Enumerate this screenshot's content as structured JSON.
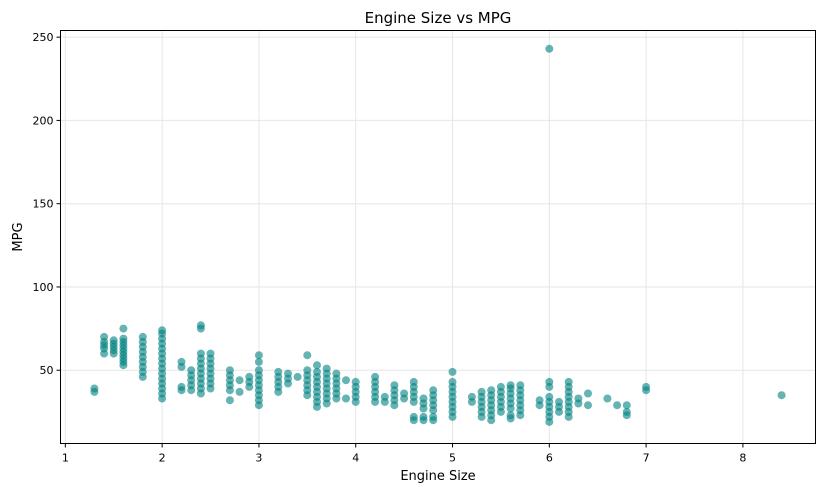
{
  "chart_data": {
    "type": "scatter",
    "title": "Engine Size vs MPG",
    "xlabel": "Engine Size",
    "ylabel": "MPG",
    "xlim": [
      0.95,
      8.75
    ],
    "ylim": [
      6,
      254
    ],
    "xticks": [
      1,
      2,
      3,
      4,
      5,
      6,
      7,
      8
    ],
    "yticks": [
      50,
      100,
      150,
      200,
      250
    ],
    "grid": true,
    "marker_color": "#008080",
    "marker_alpha": 0.6,
    "series": [
      {
        "points": [
          [
            1.3,
            37
          ],
          [
            1.3,
            39
          ],
          [
            1.4,
            60
          ],
          [
            1.4,
            63
          ],
          [
            1.4,
            65
          ],
          [
            1.4,
            67
          ],
          [
            1.4,
            70
          ],
          [
            1.5,
            60
          ],
          [
            1.5,
            62
          ],
          [
            1.5,
            64
          ],
          [
            1.5,
            66
          ],
          [
            1.5,
            68
          ],
          [
            1.6,
            53
          ],
          [
            1.6,
            55
          ],
          [
            1.6,
            57
          ],
          [
            1.6,
            59
          ],
          [
            1.6,
            61
          ],
          [
            1.6,
            63
          ],
          [
            1.6,
            65
          ],
          [
            1.6,
            67
          ],
          [
            1.6,
            69
          ],
          [
            1.6,
            75
          ],
          [
            1.8,
            46
          ],
          [
            1.8,
            49
          ],
          [
            1.8,
            52
          ],
          [
            1.8,
            55
          ],
          [
            1.8,
            58
          ],
          [
            1.8,
            61
          ],
          [
            1.8,
            64
          ],
          [
            1.8,
            67
          ],
          [
            1.8,
            70
          ],
          [
            2.0,
            33
          ],
          [
            2.0,
            36
          ],
          [
            2.0,
            39
          ],
          [
            2.0,
            42
          ],
          [
            2.0,
            45
          ],
          [
            2.0,
            48
          ],
          [
            2.0,
            51
          ],
          [
            2.0,
            54
          ],
          [
            2.0,
            57
          ],
          [
            2.0,
            60
          ],
          [
            2.0,
            63
          ],
          [
            2.0,
            66
          ],
          [
            2.0,
            69
          ],
          [
            2.0,
            72
          ],
          [
            2.0,
            74
          ],
          [
            2.2,
            38
          ],
          [
            2.2,
            40
          ],
          [
            2.2,
            52
          ],
          [
            2.2,
            55
          ],
          [
            2.3,
            38
          ],
          [
            2.3,
            41
          ],
          [
            2.3,
            44
          ],
          [
            2.3,
            47
          ],
          [
            2.3,
            50
          ],
          [
            2.4,
            36
          ],
          [
            2.4,
            39
          ],
          [
            2.4,
            42
          ],
          [
            2.4,
            45
          ],
          [
            2.4,
            48
          ],
          [
            2.4,
            51
          ],
          [
            2.4,
            54
          ],
          [
            2.4,
            57
          ],
          [
            2.4,
            60
          ],
          [
            2.4,
            75
          ],
          [
            2.4,
            77
          ],
          [
            2.5,
            39
          ],
          [
            2.5,
            42
          ],
          [
            2.5,
            45
          ],
          [
            2.5,
            48
          ],
          [
            2.5,
            51
          ],
          [
            2.5,
            54
          ],
          [
            2.5,
            57
          ],
          [
            2.5,
            60
          ],
          [
            2.7,
            32
          ],
          [
            2.7,
            38
          ],
          [
            2.7,
            41
          ],
          [
            2.7,
            44
          ],
          [
            2.7,
            47
          ],
          [
            2.7,
            50
          ],
          [
            2.8,
            37
          ],
          [
            2.8,
            44
          ],
          [
            2.9,
            40
          ],
          [
            2.9,
            43
          ],
          [
            2.9,
            46
          ],
          [
            3.0,
            29
          ],
          [
            3.0,
            32
          ],
          [
            3.0,
            35
          ],
          [
            3.0,
            38
          ],
          [
            3.0,
            41
          ],
          [
            3.0,
            44
          ],
          [
            3.0,
            47
          ],
          [
            3.0,
            50
          ],
          [
            3.0,
            55
          ],
          [
            3.0,
            59
          ],
          [
            3.2,
            37
          ],
          [
            3.2,
            40
          ],
          [
            3.2,
            43
          ],
          [
            3.2,
            46
          ],
          [
            3.2,
            49
          ],
          [
            3.3,
            42
          ],
          [
            3.3,
            45
          ],
          [
            3.3,
            48
          ],
          [
            3.4,
            46
          ],
          [
            3.5,
            35
          ],
          [
            3.5,
            38
          ],
          [
            3.5,
            41
          ],
          [
            3.5,
            44
          ],
          [
            3.5,
            47
          ],
          [
            3.5,
            50
          ],
          [
            3.5,
            59
          ],
          [
            3.6,
            28
          ],
          [
            3.6,
            31
          ],
          [
            3.6,
            34
          ],
          [
            3.6,
            37
          ],
          [
            3.6,
            40
          ],
          [
            3.6,
            43
          ],
          [
            3.6,
            46
          ],
          [
            3.6,
            49
          ],
          [
            3.6,
            53
          ],
          [
            3.7,
            30
          ],
          [
            3.7,
            33
          ],
          [
            3.7,
            36
          ],
          [
            3.7,
            39
          ],
          [
            3.7,
            42
          ],
          [
            3.7,
            45
          ],
          [
            3.7,
            48
          ],
          [
            3.7,
            51
          ],
          [
            3.8,
            33
          ],
          [
            3.8,
            36
          ],
          [
            3.8,
            39
          ],
          [
            3.8,
            42
          ],
          [
            3.8,
            45
          ],
          [
            3.8,
            48
          ],
          [
            3.9,
            33
          ],
          [
            3.9,
            44
          ],
          [
            4.0,
            31
          ],
          [
            4.0,
            34
          ],
          [
            4.0,
            37
          ],
          [
            4.0,
            40
          ],
          [
            4.0,
            43
          ],
          [
            4.2,
            31
          ],
          [
            4.2,
            34
          ],
          [
            4.2,
            37
          ],
          [
            4.2,
            40
          ],
          [
            4.2,
            43
          ],
          [
            4.2,
            46
          ],
          [
            4.3,
            31
          ],
          [
            4.3,
            34
          ],
          [
            4.4,
            29
          ],
          [
            4.4,
            32
          ],
          [
            4.4,
            35
          ],
          [
            4.4,
            38
          ],
          [
            4.4,
            41
          ],
          [
            4.5,
            33
          ],
          [
            4.5,
            36
          ],
          [
            4.6,
            20
          ],
          [
            4.6,
            22
          ],
          [
            4.6,
            31
          ],
          [
            4.6,
            34
          ],
          [
            4.6,
            37
          ],
          [
            4.6,
            40
          ],
          [
            4.6,
            43
          ],
          [
            4.7,
            20
          ],
          [
            4.7,
            22
          ],
          [
            4.7,
            27
          ],
          [
            4.7,
            30
          ],
          [
            4.7,
            33
          ],
          [
            4.8,
            20
          ],
          [
            4.8,
            22
          ],
          [
            4.8,
            26
          ],
          [
            4.8,
            29
          ],
          [
            4.8,
            32
          ],
          [
            4.8,
            35
          ],
          [
            4.8,
            38
          ],
          [
            5.0,
            22
          ],
          [
            5.0,
            25
          ],
          [
            5.0,
            28
          ],
          [
            5.0,
            31
          ],
          [
            5.0,
            34
          ],
          [
            5.0,
            37
          ],
          [
            5.0,
            40
          ],
          [
            5.0,
            43
          ],
          [
            5.0,
            49
          ],
          [
            5.2,
            31
          ],
          [
            5.2,
            34
          ],
          [
            5.3,
            22
          ],
          [
            5.3,
            25
          ],
          [
            5.3,
            28
          ],
          [
            5.3,
            31
          ],
          [
            5.3,
            34
          ],
          [
            5.3,
            37
          ],
          [
            5.4,
            20
          ],
          [
            5.4,
            23
          ],
          [
            5.4,
            26
          ],
          [
            5.4,
            29
          ],
          [
            5.4,
            32
          ],
          [
            5.4,
            35
          ],
          [
            5.4,
            38
          ],
          [
            5.5,
            25
          ],
          [
            5.5,
            28
          ],
          [
            5.5,
            31
          ],
          [
            5.5,
            34
          ],
          [
            5.5,
            37
          ],
          [
            5.5,
            40
          ],
          [
            5.6,
            21
          ],
          [
            5.6,
            23
          ],
          [
            5.6,
            27
          ],
          [
            5.6,
            30
          ],
          [
            5.6,
            33
          ],
          [
            5.6,
            36
          ],
          [
            5.6,
            39
          ],
          [
            5.6,
            41
          ],
          [
            5.7,
            23
          ],
          [
            5.7,
            26
          ],
          [
            5.7,
            29
          ],
          [
            5.7,
            32
          ],
          [
            5.7,
            35
          ],
          [
            5.7,
            38
          ],
          [
            5.7,
            41
          ],
          [
            5.9,
            29
          ],
          [
            5.9,
            32
          ],
          [
            6.0,
            19
          ],
          [
            6.0,
            22
          ],
          [
            6.0,
            25
          ],
          [
            6.0,
            28
          ],
          [
            6.0,
            31
          ],
          [
            6.0,
            34
          ],
          [
            6.0,
            40
          ],
          [
            6.0,
            43
          ],
          [
            6.0,
            243
          ],
          [
            6.1,
            25
          ],
          [
            6.1,
            28
          ],
          [
            6.1,
            31
          ],
          [
            6.2,
            22
          ],
          [
            6.2,
            25
          ],
          [
            6.2,
            28
          ],
          [
            6.2,
            31
          ],
          [
            6.2,
            34
          ],
          [
            6.2,
            37
          ],
          [
            6.2,
            40
          ],
          [
            6.2,
            43
          ],
          [
            6.3,
            30
          ],
          [
            6.3,
            33
          ],
          [
            6.4,
            29
          ],
          [
            6.4,
            36
          ],
          [
            6.6,
            33
          ],
          [
            6.7,
            29
          ],
          [
            6.8,
            23
          ],
          [
            6.8,
            25
          ],
          [
            6.8,
            29
          ],
          [
            7.0,
            38
          ],
          [
            7.0,
            40
          ],
          [
            8.4,
            35
          ]
        ]
      }
    ]
  }
}
